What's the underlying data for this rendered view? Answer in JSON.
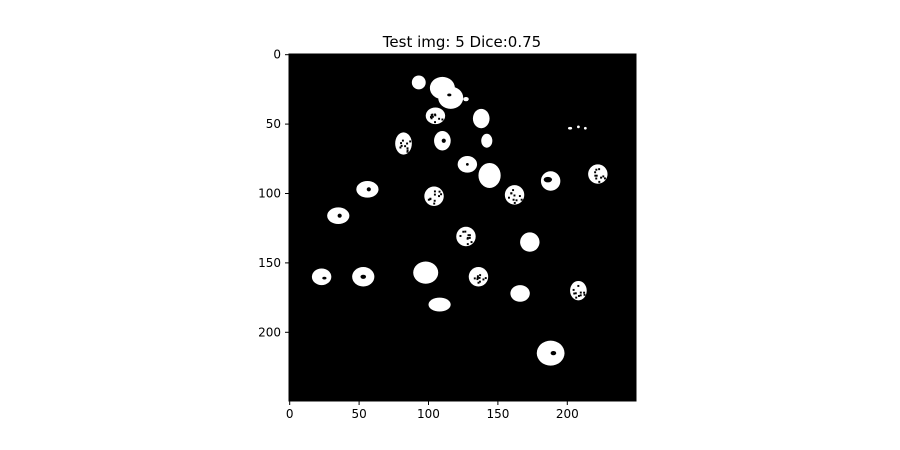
{
  "figure": {
    "title": "Test img: 5 Dice:0.75",
    "background_color": "#ffffff",
    "image_background_color": "#000000",
    "foreground_color": "#ffffff"
  },
  "axes": {
    "x_ticks": [
      0,
      50,
      100,
      150,
      200
    ],
    "y_ticks": [
      0,
      50,
      100,
      150,
      200
    ],
    "x_range": [
      -0.5,
      249.5
    ],
    "y_range": [
      -0.5,
      249.5
    ]
  },
  "mask": {
    "description_units": "pixel coordinates of the 250x250 segmentation mask",
    "blobs": [
      {
        "cx": 110,
        "cy": 24,
        "rx": 9,
        "ry": 8
      },
      {
        "cx": 116,
        "cy": 31,
        "rx": 9,
        "ry": 8
      },
      {
        "cx": 93,
        "cy": 20,
        "rx": 5,
        "ry": 5
      },
      {
        "cx": 127,
        "cy": 32,
        "rx": 2,
        "ry": 1.5
      },
      {
        "cx": 105,
        "cy": 44,
        "rx": 7,
        "ry": 6,
        "speckled": true
      },
      {
        "cx": 138,
        "cy": 46,
        "rx": 6,
        "ry": 7
      },
      {
        "cx": 82,
        "cy": 64,
        "rx": 6,
        "ry": 8,
        "speckled": true
      },
      {
        "cx": 110,
        "cy": 62,
        "rx": 6,
        "ry": 7
      },
      {
        "cx": 142,
        "cy": 62,
        "rx": 4,
        "ry": 5
      },
      {
        "cx": 128,
        "cy": 79,
        "rx": 7,
        "ry": 6
      },
      {
        "cx": 144,
        "cy": 87,
        "rx": 8,
        "ry": 9
      },
      {
        "cx": 188,
        "cy": 91,
        "rx": 7,
        "ry": 7
      },
      {
        "cx": 222,
        "cy": 86,
        "rx": 7,
        "ry": 7,
        "speckled": true
      },
      {
        "cx": 56,
        "cy": 97,
        "rx": 8,
        "ry": 6
      },
      {
        "cx": 104,
        "cy": 102,
        "rx": 7,
        "ry": 7,
        "speckled": true
      },
      {
        "cx": 162,
        "cy": 101,
        "rx": 7,
        "ry": 7,
        "speckled": true
      },
      {
        "cx": 35,
        "cy": 116,
        "rx": 8,
        "ry": 6
      },
      {
        "cx": 127,
        "cy": 131,
        "rx": 7,
        "ry": 7,
        "speckled": true
      },
      {
        "cx": 173,
        "cy": 135,
        "rx": 7,
        "ry": 7
      },
      {
        "cx": 98,
        "cy": 157,
        "rx": 9,
        "ry": 8
      },
      {
        "cx": 23,
        "cy": 160,
        "rx": 7,
        "ry": 6
      },
      {
        "cx": 53,
        "cy": 160,
        "rx": 8,
        "ry": 7
      },
      {
        "cx": 136,
        "cy": 160,
        "rx": 7,
        "ry": 7,
        "speckled": true
      },
      {
        "cx": 166,
        "cy": 172,
        "rx": 7,
        "ry": 6
      },
      {
        "cx": 208,
        "cy": 170,
        "rx": 6,
        "ry": 7,
        "speckled": true
      },
      {
        "cx": 108,
        "cy": 180,
        "rx": 8,
        "ry": 5
      },
      {
        "cx": 188,
        "cy": 215,
        "rx": 10,
        "ry": 9
      },
      {
        "cx": 202,
        "cy": 53,
        "rx": 1.5,
        "ry": 1
      },
      {
        "cx": 208,
        "cy": 52,
        "rx": 1,
        "ry": 1
      },
      {
        "cx": 213,
        "cy": 53,
        "rx": 1,
        "ry": 1
      }
    ],
    "holes": [
      {
        "cx": 115,
        "cy": 29,
        "rx": 1.5,
        "ry": 1
      },
      {
        "cx": 57,
        "cy": 97,
        "rx": 1.5,
        "ry": 1.5
      },
      {
        "cx": 36,
        "cy": 116,
        "rx": 1.5,
        "ry": 1.5
      },
      {
        "cx": 53,
        "cy": 160,
        "rx": 2,
        "ry": 1.5
      },
      {
        "cx": 25,
        "cy": 161,
        "rx": 1.5,
        "ry": 1
      },
      {
        "cx": 186,
        "cy": 90,
        "rx": 3,
        "ry": 2
      },
      {
        "cx": 128,
        "cy": 79,
        "rx": 1,
        "ry": 1
      },
      {
        "cx": 190,
        "cy": 215,
        "rx": 2,
        "ry": 1.5
      },
      {
        "cx": 111,
        "cy": 62,
        "rx": 1.5,
        "ry": 1.5
      }
    ]
  }
}
